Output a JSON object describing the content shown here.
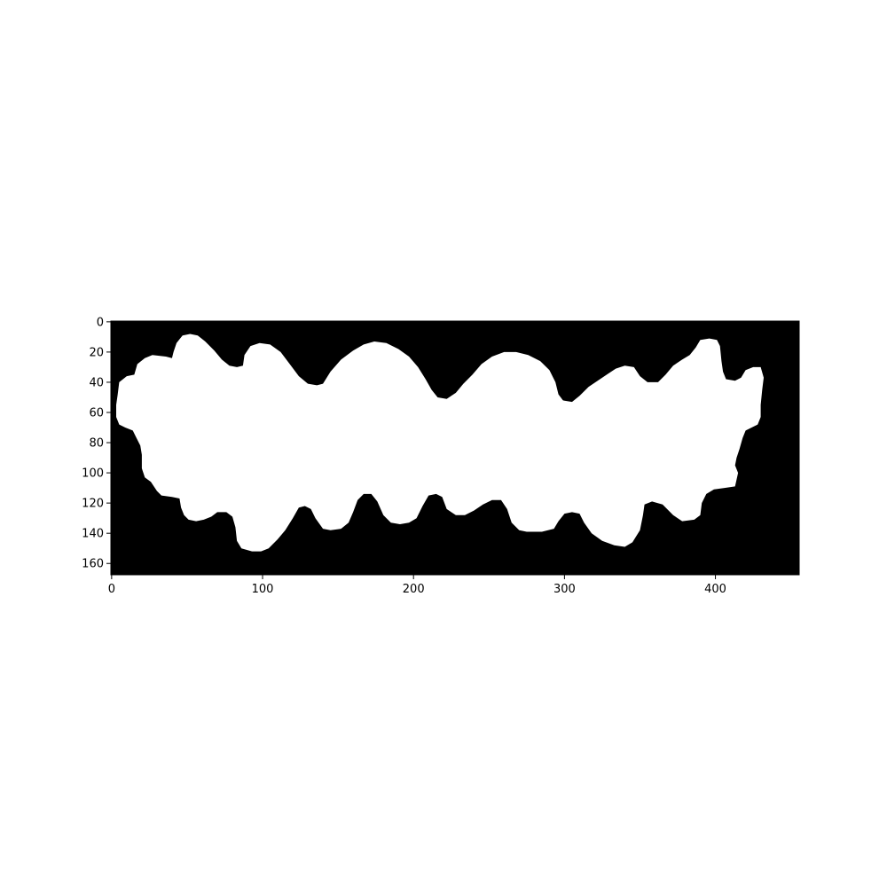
{
  "colors": {
    "background": "#000000",
    "foreground": "#ffffff",
    "axis": "#000000"
  },
  "image": {
    "rows": 168,
    "cols": 456,
    "description_type": "binary mask (white blob on black background)"
  },
  "axes": {
    "x_ticks": [
      0,
      100,
      200,
      300,
      400
    ],
    "y_ticks": [
      0,
      20,
      40,
      60,
      80,
      100,
      120,
      140,
      160
    ],
    "x_range": [
      -0.5,
      455.5
    ],
    "y_range": [
      167.5,
      -0.5
    ]
  },
  "mask_outline": [
    [
      5,
      40
    ],
    [
      10,
      36
    ],
    [
      15,
      35
    ],
    [
      17,
      28
    ],
    [
      22,
      24
    ],
    [
      27,
      22
    ],
    [
      36,
      23
    ],
    [
      40,
      24
    ],
    [
      41,
      20
    ],
    [
      43,
      14
    ],
    [
      47,
      9
    ],
    [
      52,
      8
    ],
    [
      57,
      9
    ],
    [
      62,
      13
    ],
    [
      68,
      19
    ],
    [
      73,
      25
    ],
    [
      78,
      29
    ],
    [
      83,
      30
    ],
    [
      87,
      29
    ],
    [
      88,
      22
    ],
    [
      92,
      16
    ],
    [
      98,
      14
    ],
    [
      105,
      15
    ],
    [
      112,
      20
    ],
    [
      118,
      28
    ],
    [
      124,
      36
    ],
    [
      130,
      41
    ],
    [
      136,
      42
    ],
    [
      140,
      41
    ],
    [
      145,
      33
    ],
    [
      152,
      25
    ],
    [
      160,
      19
    ],
    [
      167,
      15
    ],
    [
      174,
      13
    ],
    [
      182,
      14
    ],
    [
      190,
      18
    ],
    [
      197,
      23
    ],
    [
      203,
      30
    ],
    [
      208,
      38
    ],
    [
      212,
      45
    ],
    [
      216,
      50
    ],
    [
      222,
      51
    ],
    [
      228,
      47
    ],
    [
      233,
      41
    ],
    [
      239,
      35
    ],
    [
      245,
      28
    ],
    [
      252,
      23
    ],
    [
      260,
      20
    ],
    [
      268,
      20
    ],
    [
      276,
      22
    ],
    [
      284,
      26
    ],
    [
      290,
      32
    ],
    [
      294,
      40
    ],
    [
      296,
      48
    ],
    [
      299,
      52
    ],
    [
      305,
      53
    ],
    [
      310,
      49
    ],
    [
      316,
      43
    ],
    [
      322,
      39
    ],
    [
      328,
      35
    ],
    [
      334,
      31
    ],
    [
      340,
      29
    ],
    [
      346,
      30
    ],
    [
      350,
      36
    ],
    [
      355,
      40
    ],
    [
      362,
      40
    ],
    [
      367,
      35
    ],
    [
      372,
      29
    ],
    [
      378,
      25
    ],
    [
      383,
      22
    ],
    [
      387,
      17
    ],
    [
      390,
      12
    ],
    [
      396,
      11
    ],
    [
      401,
      12
    ],
    [
      403,
      16
    ],
    [
      404,
      26
    ],
    [
      405,
      33
    ],
    [
      407,
      38
    ],
    [
      413,
      39
    ],
    [
      417,
      37
    ],
    [
      420,
      32
    ],
    [
      425,
      30
    ],
    [
      430,
      30
    ],
    [
      432,
      37
    ],
    [
      431,
      45
    ],
    [
      430,
      55
    ],
    [
      430,
      63
    ],
    [
      428,
      68
    ],
    [
      424,
      70
    ],
    [
      420,
      72
    ],
    [
      418,
      77
    ],
    [
      416,
      84
    ],
    [
      414,
      90
    ],
    [
      413,
      95
    ],
    [
      415,
      100
    ],
    [
      413,
      109
    ],
    [
      406,
      110
    ],
    [
      399,
      111
    ],
    [
      394,
      114
    ],
    [
      391,
      120
    ],
    [
      390,
      128
    ],
    [
      386,
      131
    ],
    [
      378,
      132
    ],
    [
      372,
      128
    ],
    [
      365,
      121
    ],
    [
      358,
      119
    ],
    [
      353,
      121
    ],
    [
      352,
      128
    ],
    [
      350,
      138
    ],
    [
      345,
      146
    ],
    [
      340,
      149
    ],
    [
      333,
      148
    ],
    [
      325,
      145
    ],
    [
      318,
      140
    ],
    [
      313,
      133
    ],
    [
      310,
      127
    ],
    [
      305,
      126
    ],
    [
      300,
      127
    ],
    [
      296,
      132
    ],
    [
      293,
      137
    ],
    [
      285,
      139
    ],
    [
      275,
      139
    ],
    [
      270,
      138
    ],
    [
      265,
      133
    ],
    [
      262,
      124
    ],
    [
      258,
      118
    ],
    [
      252,
      118
    ],
    [
      246,
      121
    ],
    [
      240,
      125
    ],
    [
      234,
      128
    ],
    [
      228,
      128
    ],
    [
      222,
      124
    ],
    [
      219,
      116
    ],
    [
      215,
      114
    ],
    [
      210,
      115
    ],
    [
      206,
      122
    ],
    [
      202,
      130
    ],
    [
      197,
      133
    ],
    [
      191,
      134
    ],
    [
      185,
      133
    ],
    [
      180,
      128
    ],
    [
      176,
      119
    ],
    [
      172,
      114
    ],
    [
      167,
      114
    ],
    [
      163,
      118
    ],
    [
      160,
      126
    ],
    [
      157,
      133
    ],
    [
      152,
      137
    ],
    [
      145,
      138
    ],
    [
      140,
      137
    ],
    [
      135,
      130
    ],
    [
      132,
      124
    ],
    [
      128,
      122
    ],
    [
      124,
      123
    ],
    [
      120,
      130
    ],
    [
      115,
      138
    ],
    [
      110,
      144
    ],
    [
      104,
      150
    ],
    [
      99,
      152
    ],
    [
      93,
      152
    ],
    [
      86,
      150
    ],
    [
      83,
      145
    ],
    [
      82,
      136
    ],
    [
      80,
      129
    ],
    [
      76,
      126
    ],
    [
      70,
      126
    ],
    [
      66,
      129
    ],
    [
      61,
      131
    ],
    [
      56,
      132
    ],
    [
      51,
      131
    ],
    [
      48,
      128
    ],
    [
      46,
      123
    ],
    [
      45,
      117
    ],
    [
      40,
      116
    ],
    [
      33,
      115
    ],
    [
      30,
      112
    ],
    [
      26,
      106
    ],
    [
      22,
      103
    ],
    [
      20,
      97
    ],
    [
      20,
      88
    ],
    [
      19,
      82
    ],
    [
      16,
      76
    ],
    [
      14,
      72
    ],
    [
      9,
      70
    ],
    [
      5,
      68
    ],
    [
      3,
      63
    ],
    [
      3,
      55
    ],
    [
      4,
      48
    ],
    [
      5,
      40
    ]
  ]
}
